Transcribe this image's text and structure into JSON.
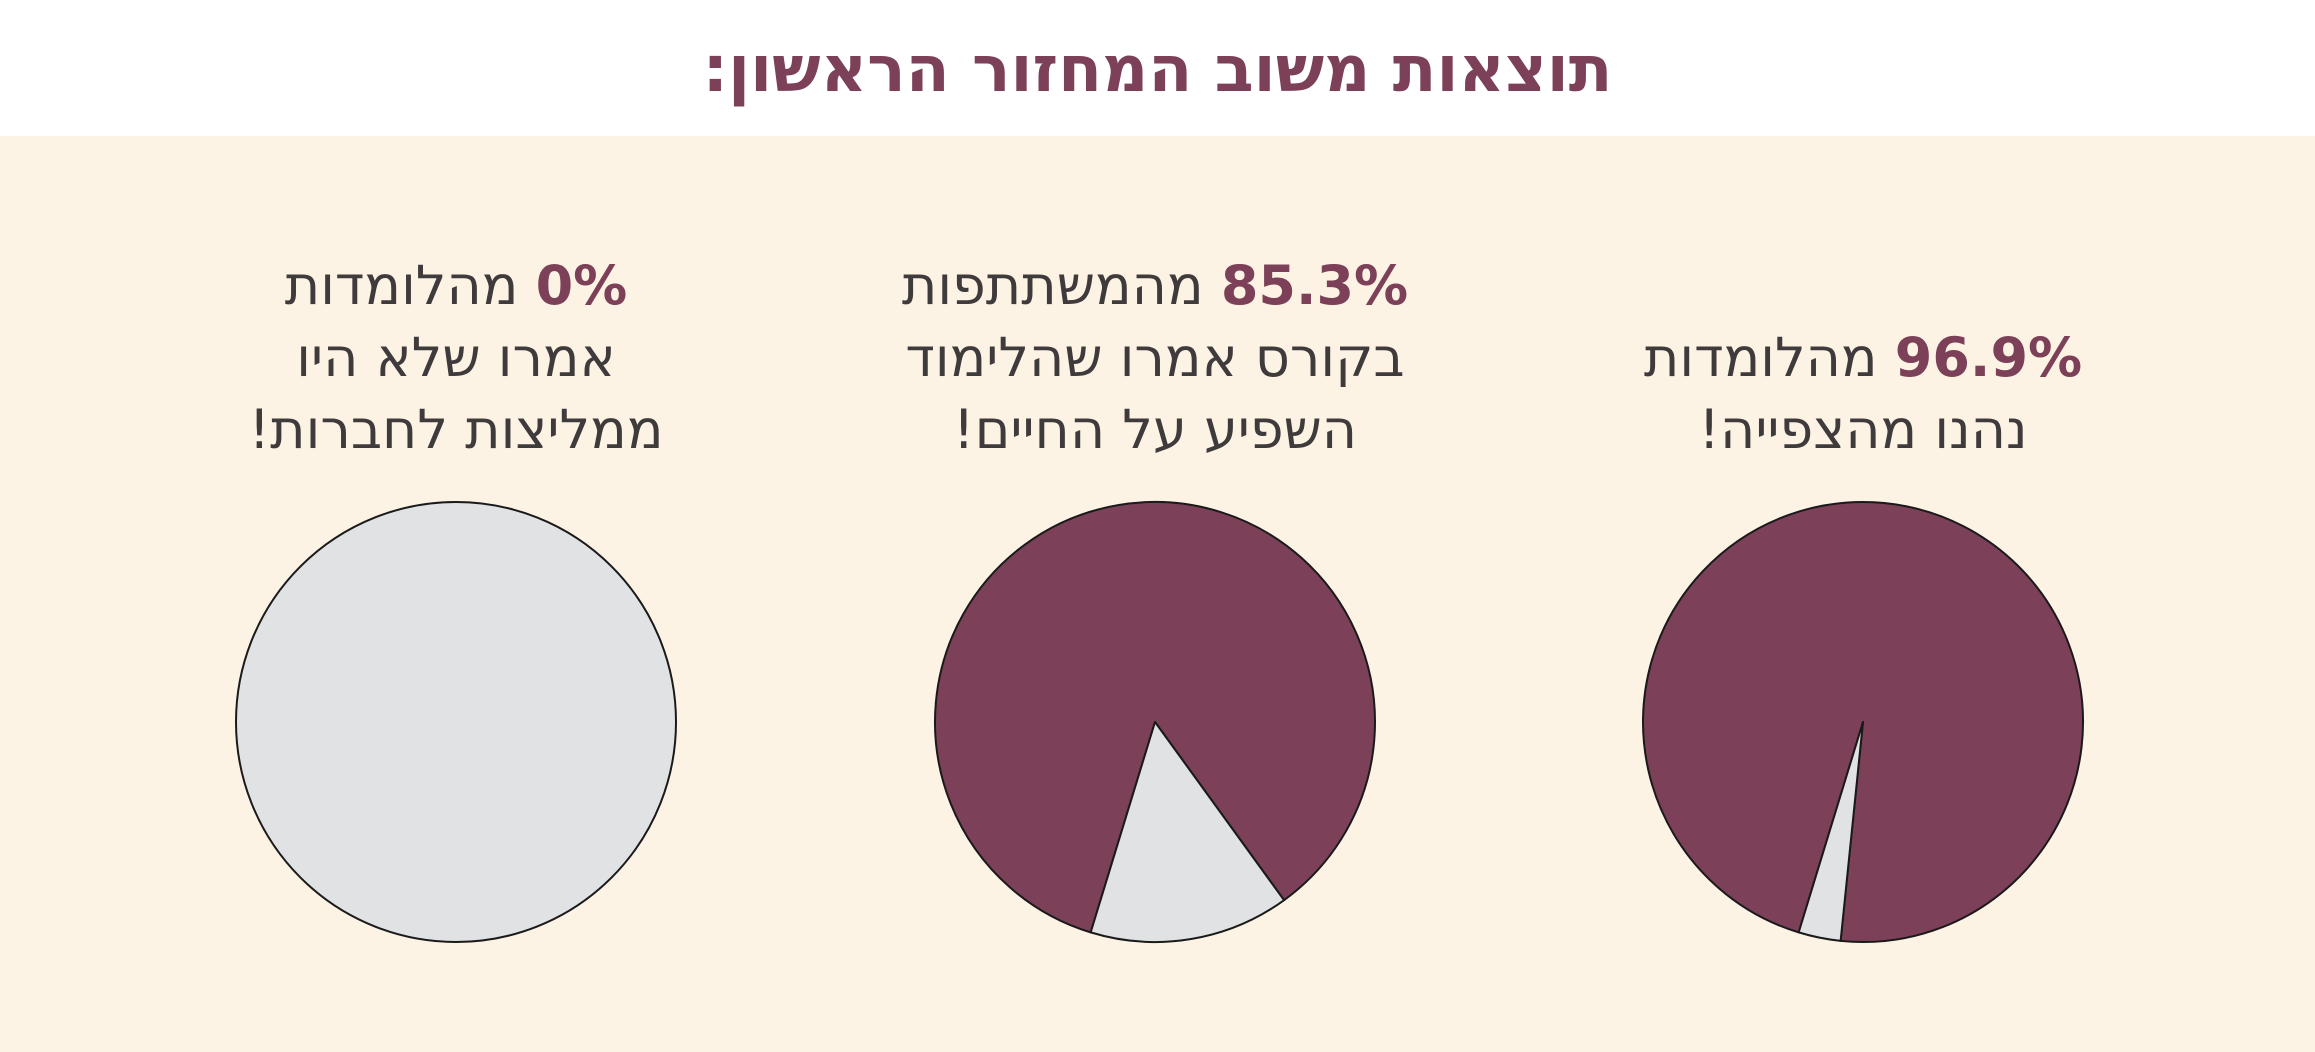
{
  "page": {
    "title": "תוצאות משוב המחזור הראשון:"
  },
  "cards": [
    {
      "percent_label": "96.9%",
      "line1_rest": " מהלומדות",
      "line2": "נהנו מהצפייה!",
      "line3": ""
    },
    {
      "percent_label": "85.3%",
      "line1_rest": " מהמשתתפות",
      "line2": "בקורס אמרו שהלימוד",
      "line3": "השפיע על החיים!"
    },
    {
      "percent_label": "0%",
      "line1_rest": " מהלומדות",
      "line2": "אמרו שלא היו",
      "line3": "ממליצות לחברות!"
    }
  ],
  "colors": {
    "accent": "#7c4059",
    "rest": "#e1e2e4",
    "panel": "#fdf3e4",
    "text": "#3f3b3c"
  },
  "chart_data": [
    {
      "type": "pie",
      "slices": [
        {
          "value": 96.9,
          "color": "#7c4059"
        },
        {
          "value": 3.1,
          "color": "#e1e2e4"
        }
      ]
    },
    {
      "type": "pie",
      "slices": [
        {
          "value": 85.3,
          "color": "#7c4059"
        },
        {
          "value": 14.7,
          "color": "#e1e2e4"
        }
      ]
    },
    {
      "type": "pie",
      "slices": [
        {
          "value": 0,
          "color": "#7c4059"
        },
        {
          "value": 100,
          "color": "#e1e2e4"
        }
      ]
    }
  ]
}
